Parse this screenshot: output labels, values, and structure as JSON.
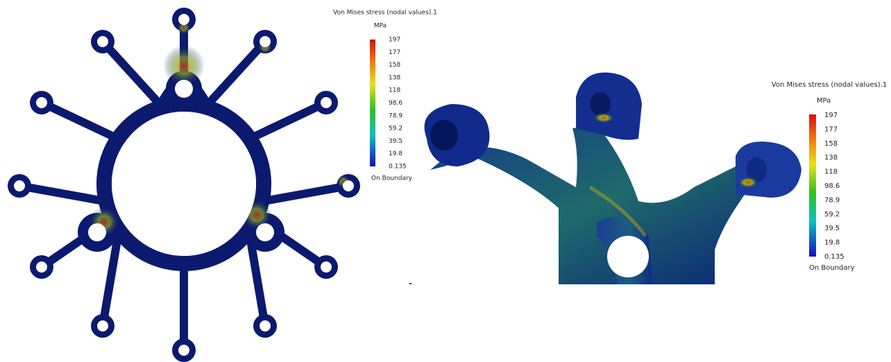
{
  "panels": [
    {
      "legend": {
        "title": "Von Mises stress (nodal values).1",
        "unit": "MPa",
        "labels": [
          "197",
          "177",
          "158",
          "138",
          "118",
          "98.6",
          "78.9",
          "59.2",
          "39.5",
          "19.8",
          "0.135"
        ],
        "note": "On Boundary"
      }
    },
    {
      "legend": {
        "title": "Von Mises stress (nodal values).1",
        "unit": "MPa",
        "labels": [
          "197",
          "177",
          "158",
          "138",
          "118",
          "98.6",
          "78.9",
          "59.2",
          "39.5",
          "19.8",
          "0.135"
        ],
        "note": "On Boundary"
      }
    }
  ]
}
